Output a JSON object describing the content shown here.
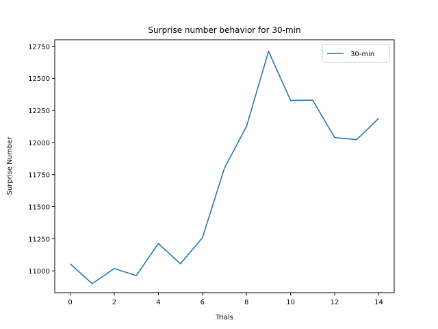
{
  "chart_data": {
    "type": "line",
    "title": "Surprise number behavior for 30-min",
    "xlabel": "Trials",
    "ylabel": "Surprise Number",
    "x": [
      0,
      1,
      2,
      3,
      4,
      5,
      6,
      7,
      8,
      9,
      10,
      11,
      12,
      13,
      14
    ],
    "series": [
      {
        "name": "30-min",
        "color": "#1f77b4",
        "values": [
          11055,
          10900,
          11018,
          10963,
          11213,
          11055,
          11258,
          11800,
          12125,
          12710,
          12327,
          12330,
          12038,
          12022,
          12188
        ]
      }
    ],
    "xlim": [
      -0.7,
      14.7
    ],
    "ylim": [
      10830,
      12800
    ],
    "xticks": [
      0,
      2,
      4,
      6,
      8,
      10,
      12,
      14
    ],
    "yticks": [
      11000,
      11250,
      11500,
      11750,
      12000,
      12250,
      12500,
      12750
    ],
    "grid": false,
    "legend": "top-right"
  }
}
